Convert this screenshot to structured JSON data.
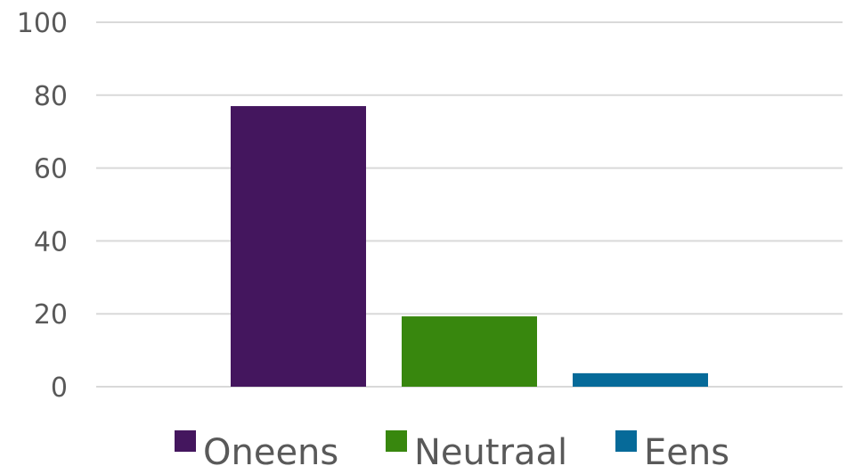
{
  "chart_data": {
    "type": "bar",
    "title": "",
    "xlabel": "",
    "ylabel": "",
    "ylim": [
      0,
      100
    ],
    "yticks": [
      0,
      20,
      40,
      60,
      80,
      100
    ],
    "grid": true,
    "legend_position": "bottom",
    "series": [
      {
        "name": "Oneens",
        "value": 77,
        "color": "#44165e"
      },
      {
        "name": "Neutraal",
        "value": 19.3,
        "color": "#38870e"
      },
      {
        "name": "Eens",
        "value": 3.7,
        "color": "#066a99"
      }
    ]
  }
}
